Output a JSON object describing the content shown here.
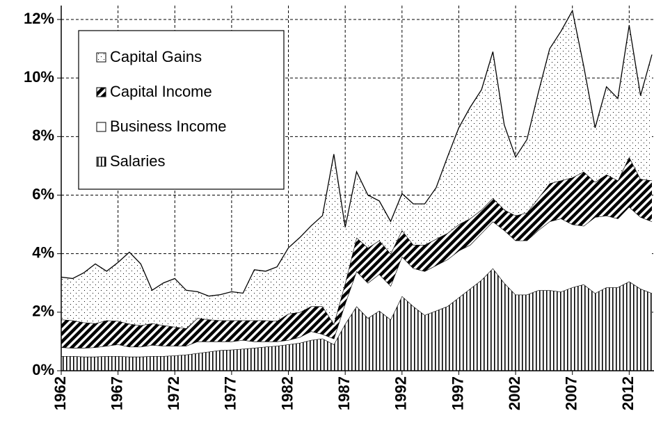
{
  "chart_data": {
    "type": "stacked_area",
    "x": [
      1962,
      1963,
      1964,
      1965,
      1966,
      1967,
      1968,
      1969,
      1970,
      1971,
      1972,
      1973,
      1974,
      1975,
      1976,
      1977,
      1978,
      1979,
      1980,
      1981,
      1982,
      1983,
      1984,
      1985,
      1986,
      1987,
      1988,
      1989,
      1990,
      1991,
      1992,
      1993,
      1994,
      1995,
      1996,
      1997,
      1998,
      1999,
      2000,
      2001,
      2002,
      2003,
      2004,
      2005,
      2006,
      2007,
      2008,
      2009,
      2010,
      2011,
      2012,
      2013,
      2014
    ],
    "series": [
      {
        "name": "Salaries",
        "color": "#000000",
        "pattern": "vertical",
        "values": [
          0.5,
          0.5,
          0.48,
          0.48,
          0.5,
          0.5,
          0.48,
          0.48,
          0.5,
          0.5,
          0.52,
          0.55,
          0.6,
          0.65,
          0.7,
          0.72,
          0.75,
          0.78,
          0.82,
          0.85,
          0.9,
          0.95,
          1.05,
          1.1,
          0.9,
          1.6,
          2.2,
          1.8,
          2.05,
          1.75,
          2.55,
          2.2,
          1.9,
          2.05,
          2.2,
          2.5,
          2.8,
          3.1,
          3.5,
          3.0,
          2.6,
          2.6,
          2.75,
          2.75,
          2.7,
          2.85,
          2.95,
          2.65,
          2.85,
          2.85,
          3.05,
          2.8,
          2.65
        ]
      },
      {
        "name": "Business Income",
        "color": "#ffffff",
        "pattern": "solid",
        "values": [
          0.3,
          0.28,
          0.3,
          0.32,
          0.35,
          0.4,
          0.34,
          0.34,
          0.38,
          0.35,
          0.33,
          0.3,
          0.4,
          0.35,
          0.3,
          0.28,
          0.3,
          0.22,
          0.18,
          0.15,
          0.15,
          0.2,
          0.3,
          0.15,
          0.2,
          0.7,
          1.2,
          1.2,
          1.25,
          1.15,
          1.35,
          1.3,
          1.5,
          1.55,
          1.6,
          1.6,
          1.5,
          1.6,
          1.6,
          1.8,
          1.85,
          1.85,
          2.05,
          2.35,
          2.5,
          2.15,
          2.0,
          2.6,
          2.45,
          2.35,
          2.55,
          2.45,
          2.45
        ]
      },
      {
        "name": "Capital Income",
        "color": "#000000",
        "pattern": "diagonal",
        "values": [
          0.95,
          0.94,
          0.87,
          0.82,
          0.87,
          0.8,
          0.78,
          0.73,
          0.74,
          0.7,
          0.65,
          0.6,
          0.8,
          0.75,
          0.72,
          0.72,
          0.67,
          0.72,
          0.72,
          0.7,
          0.9,
          0.85,
          0.85,
          0.95,
          0.5,
          0.7,
          1.15,
          1.2,
          1.15,
          1.1,
          0.9,
          0.8,
          0.9,
          0.9,
          0.9,
          0.9,
          0.9,
          0.8,
          0.8,
          0.7,
          0.85,
          0.95,
          1.1,
          1.3,
          1.3,
          1.6,
          1.85,
          1.2,
          1.4,
          1.3,
          1.7,
          1.3,
          1.4
        ]
      },
      {
        "name": "Capital Gains",
        "color": "#000000",
        "pattern": "dots",
        "values": [
          1.45,
          1.43,
          1.7,
          2.03,
          1.68,
          2.0,
          2.45,
          2.1,
          1.13,
          1.45,
          1.65,
          1.3,
          0.9,
          0.8,
          0.88,
          0.98,
          0.93,
          1.73,
          1.68,
          1.85,
          2.25,
          2.55,
          2.75,
          3.1,
          5.8,
          1.9,
          2.25,
          1.8,
          1.35,
          1.1,
          1.25,
          1.4,
          1.4,
          1.75,
          2.6,
          3.3,
          3.8,
          4.1,
          5.0,
          2.9,
          2.0,
          2.5,
          3.6,
          4.6,
          5.1,
          5.7,
          3.6,
          1.85,
          3.0,
          2.8,
          4.5,
          2.85,
          4.3
        ]
      }
    ],
    "xlim": [
      1962,
      2014
    ],
    "xticks": [
      1962,
      1967,
      1972,
      1977,
      1982,
      1987,
      1992,
      1997,
      2002,
      2007,
      2012
    ],
    "ylim": [
      0,
      12
    ],
    "yticks": [
      {
        "value": 0,
        "label": "0%"
      },
      {
        "value": 2,
        "label": "2%"
      },
      {
        "value": 4,
        "label": "4%"
      },
      {
        "value": 6,
        "label": "6%"
      },
      {
        "value": 8,
        "label": "8%"
      },
      {
        "value": 10,
        "label": "10%"
      },
      {
        "value": 12,
        "label": "12%"
      }
    ],
    "grid": true,
    "legend": "upper left"
  }
}
